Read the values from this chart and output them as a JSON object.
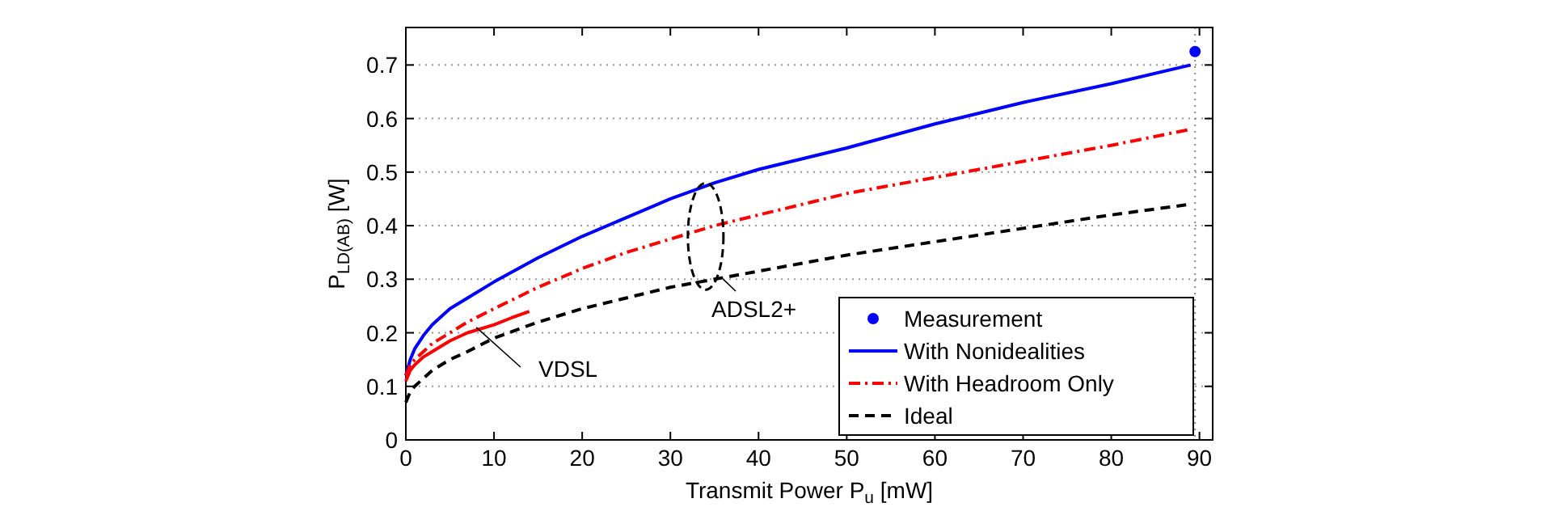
{
  "chart_data": {
    "type": "line",
    "xlabel": "Transmit Power P$_{u}$ [mW]",
    "ylabel": "P$_{LD(AB)}$ [W]",
    "xlim": [
      0,
      91.5
    ],
    "ylim": [
      0,
      0.77
    ],
    "xticks": [
      0,
      10,
      20,
      30,
      40,
      50,
      60,
      70,
      80,
      90
    ],
    "yticks": [
      0,
      0.1,
      0.2,
      0.3,
      0.4,
      0.5,
      0.6,
      0.7
    ],
    "grid": "y",
    "legend": "bottom right",
    "series": [
      {
        "name": "Measurement",
        "type": "scatter",
        "marker": "circle",
        "color": "#0000ff",
        "x": [
          89.5
        ],
        "values": [
          0.725
        ]
      },
      {
        "name": "With Nonidealities",
        "line_style": "solid",
        "color": "#0000ff",
        "x": [
          0,
          0.5,
          1,
          2,
          3,
          5,
          7,
          10,
          15,
          20,
          25,
          30,
          35,
          40,
          50,
          60,
          70,
          80,
          89
        ],
        "values": [
          0.12,
          0.15,
          0.17,
          0.195,
          0.215,
          0.245,
          0.265,
          0.295,
          0.34,
          0.38,
          0.415,
          0.45,
          0.48,
          0.505,
          0.545,
          0.59,
          0.63,
          0.665,
          0.7
        ]
      },
      {
        "name": "With Headroom Only",
        "line_style": "dashdot",
        "color": "#ff0000",
        "x": [
          0,
          0.5,
          1,
          2,
          3,
          5,
          7,
          10,
          15,
          20,
          25,
          30,
          35,
          40,
          50,
          60,
          70,
          80,
          89
        ],
        "values": [
          0.12,
          0.14,
          0.15,
          0.165,
          0.18,
          0.2,
          0.22,
          0.245,
          0.285,
          0.32,
          0.35,
          0.375,
          0.4,
          0.42,
          0.46,
          0.49,
          0.52,
          0.55,
          0.58
        ]
      },
      {
        "name": "Ideal",
        "line_style": "dashed",
        "color": "#000000",
        "x": [
          0,
          0.5,
          1,
          2,
          3,
          5,
          7,
          10,
          15,
          20,
          25,
          30,
          35,
          40,
          50,
          60,
          70,
          80,
          89
        ],
        "values": [
          0.07,
          0.09,
          0.1,
          0.115,
          0.13,
          0.15,
          0.165,
          0.19,
          0.22,
          0.245,
          0.265,
          0.285,
          0.3,
          0.315,
          0.345,
          0.37,
          0.395,
          0.42,
          0.44
        ]
      },
      {
        "line_style": "solid",
        "color": "#ff0000",
        "x": [
          0,
          0.5,
          1,
          2,
          3,
          5,
          7,
          10,
          12,
          14
        ],
        "values": [
          0.11,
          0.13,
          0.14,
          0.155,
          0.165,
          0.185,
          0.2,
          0.215,
          0.228,
          0.24
        ]
      }
    ],
    "ref_lines": [
      {
        "axis": "x",
        "value": 89.5,
        "line_style": "dotted",
        "color": "#888888"
      }
    ],
    "annotations": [
      {
        "text": "VDSL",
        "x": 8,
        "y": 0.21
      },
      {
        "text": "ADSL2+",
        "x": 36,
        "y": 0.3
      }
    ]
  }
}
